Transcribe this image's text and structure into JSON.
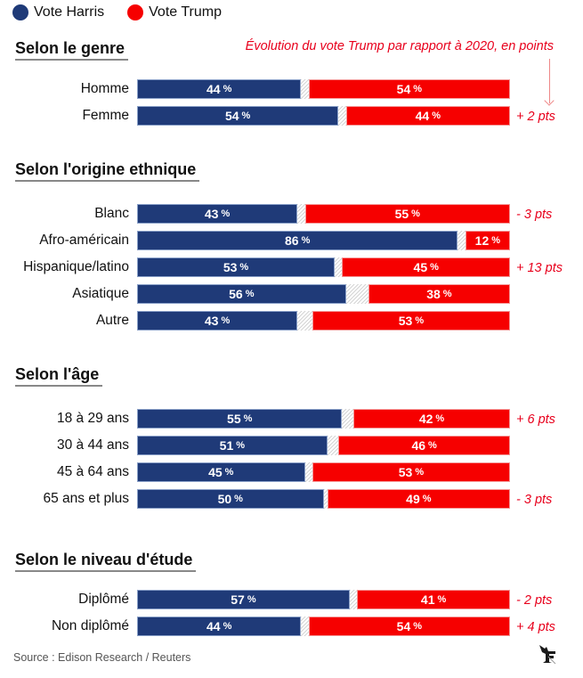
{
  "legend": {
    "items": [
      {
        "label": "Vote Harris",
        "color": "#1f3a78"
      },
      {
        "label": "Vote Trump",
        "color": "#f60000"
      }
    ]
  },
  "evolution_note": "Évolution du vote Trump par rapport à 2020, en points",
  "source": "Source : Edison Research / Reuters",
  "logo": "le-figaro-logo-icon",
  "chart_data": {
    "type": "bar",
    "orientation": "horizontal-stacked",
    "title": "",
    "xlabel": "",
    "ylabel": "",
    "xlim": [
      0,
      100
    ],
    "unit": "%",
    "series_names": [
      "Vote Harris",
      "Vote Trump"
    ],
    "colors": {
      "harris": "#1f3a78",
      "trump": "#f60000"
    },
    "evolution_note": "Évolution du vote Trump par rapport à 2020, en points",
    "groups": [
      {
        "title": "Selon le genre",
        "rows": [
          {
            "label": "Homme",
            "harris": 44,
            "trump": 54,
            "delta": ""
          },
          {
            "label": "Femme",
            "harris": 54,
            "trump": 44,
            "delta": "+ 2 pts"
          }
        ]
      },
      {
        "title": "Selon l'origine ethnique",
        "rows": [
          {
            "label": "Blanc",
            "harris": 43,
            "trump": 55,
            "delta": "- 3 pts"
          },
          {
            "label": "Afro-américain",
            "harris": 86,
            "trump": 12,
            "delta": ""
          },
          {
            "label": "Hispanique/latino",
            "harris": 53,
            "trump": 45,
            "delta": "+ 13 pts"
          },
          {
            "label": "Asiatique",
            "harris": 56,
            "trump": 38,
            "delta": ""
          },
          {
            "label": "Autre",
            "harris": 43,
            "trump": 53,
            "delta": ""
          }
        ]
      },
      {
        "title": "Selon l'âge",
        "rows": [
          {
            "label": "18 à 29 ans",
            "harris": 55,
            "trump": 42,
            "delta": "+ 6 pts"
          },
          {
            "label": "30 à 44 ans",
            "harris": 51,
            "trump": 46,
            "delta": ""
          },
          {
            "label": "45 à 64 ans",
            "harris": 45,
            "trump": 53,
            "delta": ""
          },
          {
            "label": "65 ans et plus",
            "harris": 50,
            "trump": 49,
            "delta": "- 3 pts"
          }
        ]
      },
      {
        "title": "Selon le niveau d'étude",
        "rows": [
          {
            "label": "Diplômé",
            "harris": 57,
            "trump": 41,
            "delta": "- 2 pts"
          },
          {
            "label": "Non diplômé",
            "harris": 44,
            "trump": 54,
            "delta": "+ 4 pts"
          }
        ]
      }
    ]
  }
}
